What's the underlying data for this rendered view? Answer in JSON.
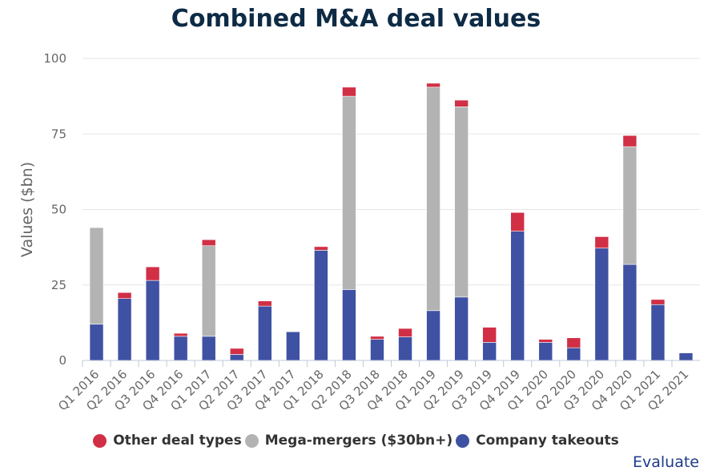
{
  "chart_data": {
    "type": "bar",
    "stacked": true,
    "title": "Combined M&A deal values",
    "ylabel": "Values ($bn)",
    "xlabel": "",
    "ylim": [
      0,
      100
    ],
    "yticks": [
      0,
      25,
      50,
      75,
      100
    ],
    "grid": true,
    "legend_position": "bottom",
    "categories": [
      "Q1 2016",
      "Q2 2016",
      "Q3 2016",
      "Q4 2016",
      "Q1 2017",
      "Q2 2017",
      "Q3 2017",
      "Q4 2017",
      "Q1 2018",
      "Q2 2018",
      "Q3 2018",
      "Q4 2018",
      "Q1 2019",
      "Q2 2019",
      "Q3 2019",
      "Q4 2019",
      "Q1 2020",
      "Q2 2020",
      "Q3 2020",
      "Q4 2020",
      "Q1 2021",
      "Q2 2021"
    ],
    "series": [
      {
        "name": "Company takeouts",
        "color": "#3f51a3",
        "values": [
          12,
          20.5,
          26.5,
          8,
          8,
          2,
          18,
          9.5,
          36.5,
          23.5,
          7,
          7.8,
          16.5,
          21,
          6,
          42.8,
          6,
          4.2,
          37.2,
          31.8,
          18.5,
          2.5
        ]
      },
      {
        "name": "Mega-mergers ($30bn+)",
        "color": "#b3b3b3",
        "values": [
          32,
          0,
          0,
          0,
          30,
          0,
          0,
          0,
          0,
          64,
          0,
          0,
          74,
          63,
          0,
          0,
          0,
          0,
          0,
          39,
          0,
          0
        ]
      },
      {
        "name": "Other deal types",
        "color": "#d12f45",
        "values": [
          0,
          2,
          4.5,
          1,
          2,
          2,
          1.7,
          0,
          1.2,
          3,
          1,
          2.8,
          1.3,
          2.2,
          5,
          6.2,
          1,
          3.3,
          3.8,
          3.7,
          1.7,
          0
        ]
      }
    ]
  },
  "legend": [
    {
      "label": "Other deal types",
      "color": "#d12f45"
    },
    {
      "label": "Mega-mergers ($30bn+)",
      "color": "#b3b3b3"
    },
    {
      "label": "Company takeouts",
      "color": "#3f51a3"
    }
  ],
  "brand": "Evaluate"
}
